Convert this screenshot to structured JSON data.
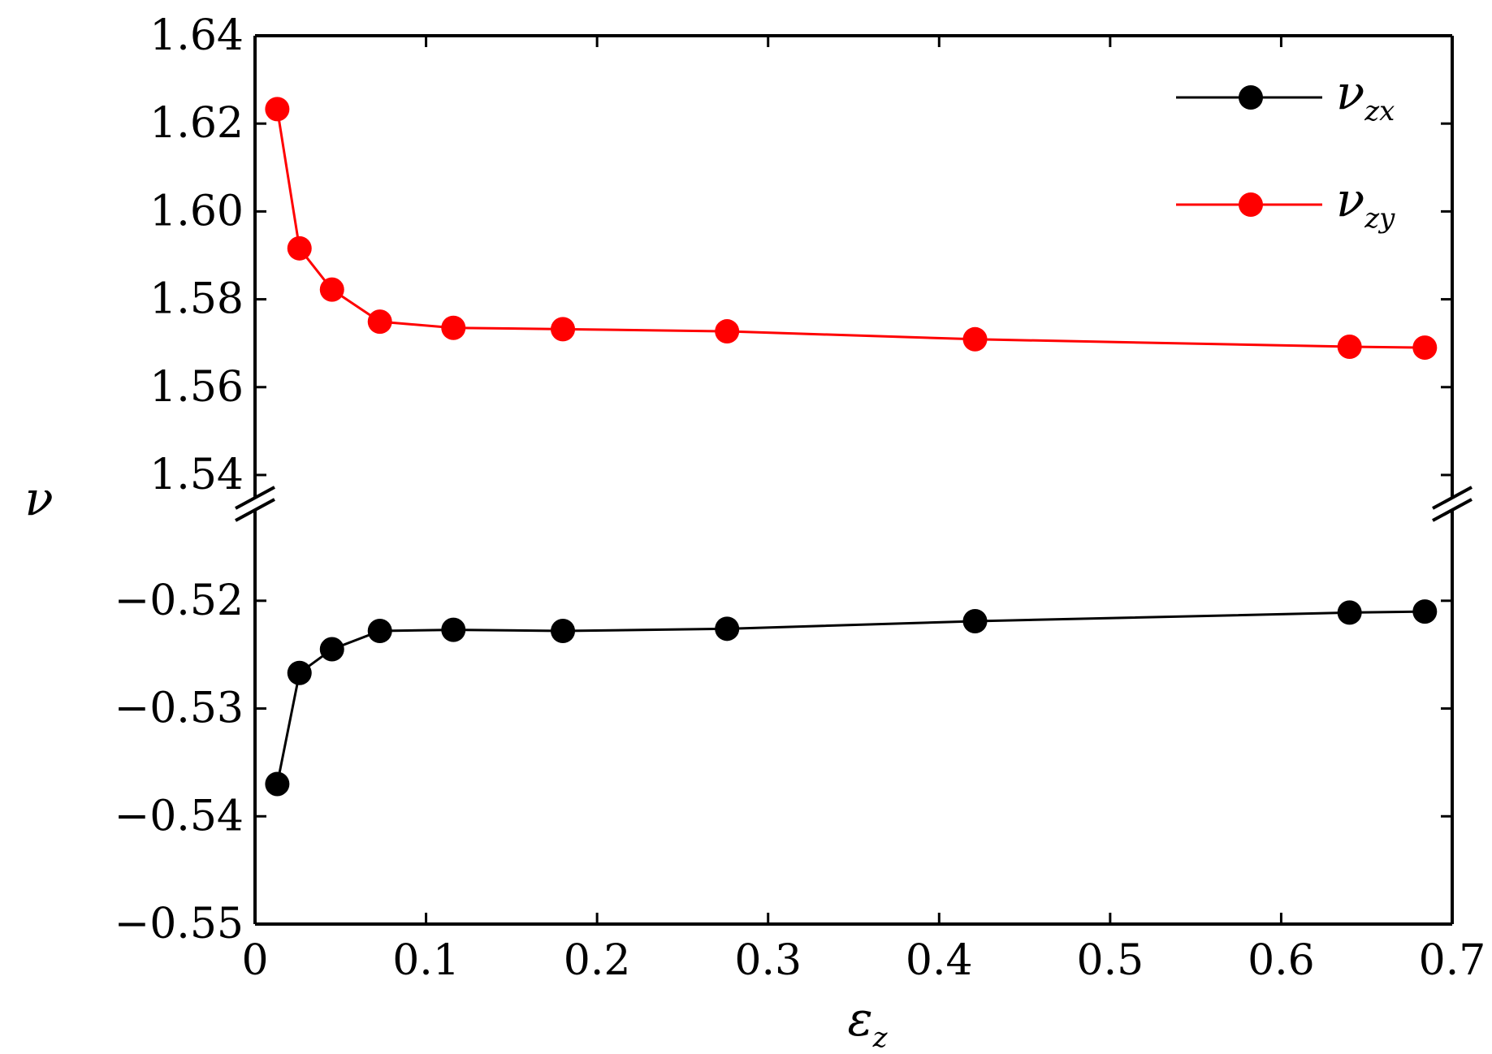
{
  "chart_data": {
    "type": "line",
    "xlabel": "ε",
    "xlabel_sub": "z",
    "ylabel": "ν",
    "xlim": [
      0,
      0.7
    ],
    "x_ticks": [
      "0",
      "0.1",
      "0.2",
      "0.3",
      "0.4",
      "0.5",
      "0.6",
      "0.7"
    ],
    "x_tick_values": [
      0,
      0.1,
      0.2,
      0.3,
      0.4,
      0.5,
      0.6,
      0.7
    ],
    "y_axis_broken": true,
    "y_upper_segment": {
      "range": [
        1.535,
        1.64
      ],
      "ticks": [
        "1.54",
        "1.56",
        "1.58",
        "1.60",
        "1.62",
        "1.64"
      ],
      "tick_values": [
        1.54,
        1.56,
        1.58,
        1.6,
        1.62,
        1.64
      ]
    },
    "y_lower_segment": {
      "range": [
        -0.55,
        -0.5115
      ],
      "ticks": [
        "−0.55",
        "−0.54",
        "−0.53",
        "−0.52"
      ],
      "tick_values": [
        -0.55,
        -0.54,
        -0.53,
        -0.52
      ]
    },
    "x": [
      0.013,
      0.026,
      0.045,
      0.073,
      0.116,
      0.18,
      0.276,
      0.421,
      0.64,
      0.684
    ],
    "series": [
      {
        "name": "ν",
        "name_sub": "zx",
        "color": "#000000",
        "segment": "lower",
        "values": [
          -0.537,
          -0.5267,
          -0.5245,
          -0.5228,
          -0.5227,
          -0.5228,
          -0.5226,
          -0.5219,
          -0.5211,
          -0.521
        ]
      },
      {
        "name": "ν",
        "name_sub": "zy",
        "color": "#ff0000",
        "segment": "upper",
        "values": [
          1.6233,
          1.5916,
          1.5822,
          1.5749,
          1.5735,
          1.5732,
          1.5727,
          1.5709,
          1.5692,
          1.569
        ]
      }
    ],
    "legend_position": "top-right",
    "grid": false
  }
}
